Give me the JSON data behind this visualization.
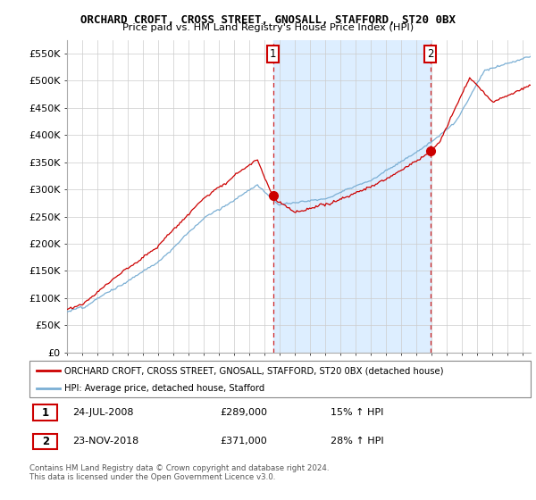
{
  "title": "ORCHARD CROFT, CROSS STREET, GNOSALL, STAFFORD, ST20 0BX",
  "subtitle": "Price paid vs. HM Land Registry's House Price Index (HPI)",
  "ylim": [
    0,
    575000
  ],
  "yticks": [
    0,
    50000,
    100000,
    150000,
    200000,
    250000,
    300000,
    350000,
    400000,
    450000,
    500000,
    550000
  ],
  "ytick_labels": [
    "£0",
    "£50K",
    "£100K",
    "£150K",
    "£200K",
    "£250K",
    "£300K",
    "£350K",
    "£400K",
    "£450K",
    "£500K",
    "£550K"
  ],
  "sale1_x": 2008.56,
  "sale1_y": 289000,
  "sale1_label": "1",
  "sale2_x": 2018.9,
  "sale2_y": 371000,
  "sale2_label": "2",
  "property_color": "#cc0000",
  "hpi_color": "#7bafd4",
  "shade_color": "#ddeeff",
  "annotation_box_color": "#cc0000",
  "background_color": "#ffffff",
  "grid_color": "#cccccc",
  "legend_entry1": "ORCHARD CROFT, CROSS STREET, GNOSALL, STAFFORD, ST20 0BX (detached house)",
  "legend_entry2": "HPI: Average price, detached house, Stafford",
  "table_row1": [
    "1",
    "24-JUL-2008",
    "£289,000",
    "15% ↑ HPI"
  ],
  "table_row2": [
    "2",
    "23-NOV-2018",
    "£371,000",
    "28% ↑ HPI"
  ],
  "footer": "Contains HM Land Registry data © Crown copyright and database right 2024.\nThis data is licensed under the Open Government Licence v3.0.",
  "xmin": 1995,
  "xmax": 2025.5
}
